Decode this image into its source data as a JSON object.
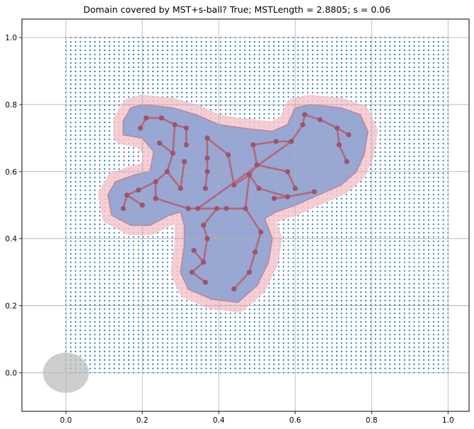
{
  "chart_data": {
    "type": "scatter",
    "title": "Domain covered by MST+s-ball? True; MSTLength = 2.8805; s = 0.06",
    "xlabel": "",
    "ylabel": "",
    "xlim": [
      -0.115,
      1.055
    ],
    "ylim": [
      -0.115,
      1.055
    ],
    "x_ticks": [
      "0.0",
      "0.2",
      "0.4",
      "0.6",
      "0.8",
      "1.0"
    ],
    "y_ticks": [
      "0.0",
      "0.2",
      "0.4",
      "0.6",
      "0.8",
      "1.0"
    ],
    "grid": true,
    "domain_grid": {
      "x_range": [
        0,
        1
      ],
      "y_range": [
        0,
        1
      ],
      "points_per_axis": 80,
      "color": "#1f77b4"
    },
    "s_ball": {
      "center": [
        0.0,
        0.0
      ],
      "radius": 0.06,
      "color": "#bdbdbd"
    },
    "mst_nodes": [
      [
        0.195,
        0.73
      ],
      [
        0.21,
        0.76
      ],
      [
        0.25,
        0.76
      ],
      [
        0.285,
        0.74
      ],
      [
        0.315,
        0.73
      ],
      [
        0.315,
        0.68
      ],
      [
        0.245,
        0.685
      ],
      [
        0.28,
        0.655
      ],
      [
        0.265,
        0.6
      ],
      [
        0.235,
        0.57
      ],
      [
        0.235,
        0.52
      ],
      [
        0.19,
        0.545
      ],
      [
        0.16,
        0.53
      ],
      [
        0.2,
        0.5
      ],
      [
        0.15,
        0.49
      ],
      [
        0.3,
        0.55
      ],
      [
        0.31,
        0.63
      ],
      [
        0.32,
        0.49
      ],
      [
        0.37,
        0.7
      ],
      [
        0.37,
        0.64
      ],
      [
        0.37,
        0.6
      ],
      [
        0.365,
        0.55
      ],
      [
        0.42,
        0.49
      ],
      [
        0.425,
        0.65
      ],
      [
        0.44,
        0.56
      ],
      [
        0.47,
        0.49
      ],
      [
        0.48,
        0.59
      ],
      [
        0.49,
        0.68
      ],
      [
        0.5,
        0.62
      ],
      [
        0.505,
        0.55
      ],
      [
        0.55,
        0.69
      ],
      [
        0.59,
        0.69
      ],
      [
        0.58,
        0.6
      ],
      [
        0.58,
        0.525
      ],
      [
        0.6,
        0.55
      ],
      [
        0.62,
        0.74
      ],
      [
        0.625,
        0.77
      ],
      [
        0.665,
        0.755
      ],
      [
        0.71,
        0.73
      ],
      [
        0.74,
        0.71
      ],
      [
        0.715,
        0.68
      ],
      [
        0.735,
        0.63
      ],
      [
        0.65,
        0.54
      ],
      [
        0.545,
        0.52
      ],
      [
        0.51,
        0.42
      ],
      [
        0.495,
        0.36
      ],
      [
        0.48,
        0.3
      ],
      [
        0.44,
        0.25
      ],
      [
        0.37,
        0.4
      ],
      [
        0.36,
        0.33
      ],
      [
        0.335,
        0.365
      ],
      [
        0.33,
        0.3
      ],
      [
        0.365,
        0.27
      ],
      [
        0.36,
        0.44
      ],
      [
        0.395,
        0.49
      ],
      [
        0.345,
        0.49
      ]
    ],
    "mst_edges": [
      [
        0,
        1
      ],
      [
        1,
        2
      ],
      [
        2,
        3
      ],
      [
        3,
        4
      ],
      [
        4,
        5
      ],
      [
        3,
        7
      ],
      [
        6,
        7
      ],
      [
        7,
        8
      ],
      [
        8,
        9
      ],
      [
        9,
        10
      ],
      [
        9,
        11
      ],
      [
        11,
        12
      ],
      [
        12,
        13
      ],
      [
        12,
        14
      ],
      [
        10,
        17
      ],
      [
        8,
        15
      ],
      [
        15,
        16
      ],
      [
        17,
        54
      ],
      [
        54,
        22
      ],
      [
        22,
        25
      ],
      [
        25,
        26
      ],
      [
        26,
        28
      ],
      [
        28,
        27
      ],
      [
        27,
        30
      ],
      [
        30,
        31
      ],
      [
        28,
        32
      ],
      [
        32,
        34
      ],
      [
        26,
        24
      ],
      [
        24,
        23
      ],
      [
        23,
        18
      ],
      [
        18,
        19
      ],
      [
        19,
        20
      ],
      [
        20,
        21
      ],
      [
        26,
        29
      ],
      [
        29,
        33
      ],
      [
        33,
        42
      ],
      [
        33,
        43
      ],
      [
        25,
        44
      ],
      [
        44,
        45
      ],
      [
        45,
        46
      ],
      [
        46,
        47
      ],
      [
        54,
        53
      ],
      [
        53,
        48
      ],
      [
        48,
        49
      ],
      [
        49,
        50
      ],
      [
        49,
        51
      ],
      [
        51,
        52
      ],
      [
        31,
        35
      ],
      [
        35,
        36
      ],
      [
        36,
        37
      ],
      [
        37,
        38
      ],
      [
        38,
        39
      ],
      [
        38,
        40
      ],
      [
        40,
        41
      ],
      [
        31,
        55
      ]
    ],
    "coverage_polygon": [
      [
        0.15,
        0.75
      ],
      [
        0.17,
        0.79
      ],
      [
        0.2,
        0.8
      ],
      [
        0.28,
        0.79
      ],
      [
        0.34,
        0.77
      ],
      [
        0.4,
        0.74
      ],
      [
        0.46,
        0.73
      ],
      [
        0.54,
        0.72
      ],
      [
        0.58,
        0.74
      ],
      [
        0.6,
        0.79
      ],
      [
        0.64,
        0.8
      ],
      [
        0.72,
        0.79
      ],
      [
        0.77,
        0.77
      ],
      [
        0.79,
        0.72
      ],
      [
        0.78,
        0.65
      ],
      [
        0.76,
        0.6
      ],
      [
        0.72,
        0.56
      ],
      [
        0.66,
        0.53
      ],
      [
        0.6,
        0.5
      ],
      [
        0.55,
        0.48
      ],
      [
        0.52,
        0.46
      ],
      [
        0.54,
        0.4
      ],
      [
        0.53,
        0.33
      ],
      [
        0.5,
        0.26
      ],
      [
        0.45,
        0.21
      ],
      [
        0.38,
        0.22
      ],
      [
        0.32,
        0.25
      ],
      [
        0.3,
        0.3
      ],
      [
        0.31,
        0.38
      ],
      [
        0.31,
        0.44
      ],
      [
        0.3,
        0.48
      ],
      [
        0.27,
        0.47
      ],
      [
        0.22,
        0.44
      ],
      [
        0.17,
        0.44
      ],
      [
        0.12,
        0.47
      ],
      [
        0.11,
        0.53
      ],
      [
        0.13,
        0.57
      ],
      [
        0.18,
        0.59
      ],
      [
        0.22,
        0.6
      ],
      [
        0.23,
        0.66
      ],
      [
        0.2,
        0.7
      ],
      [
        0.15,
        0.71
      ]
    ],
    "colors": {
      "coverage": "#8fa3d4",
      "halo": "#f6c6cc",
      "mst_edge": "#b3677c",
      "mst_node": "#9b546f",
      "grid": "#b0b0b0"
    }
  }
}
